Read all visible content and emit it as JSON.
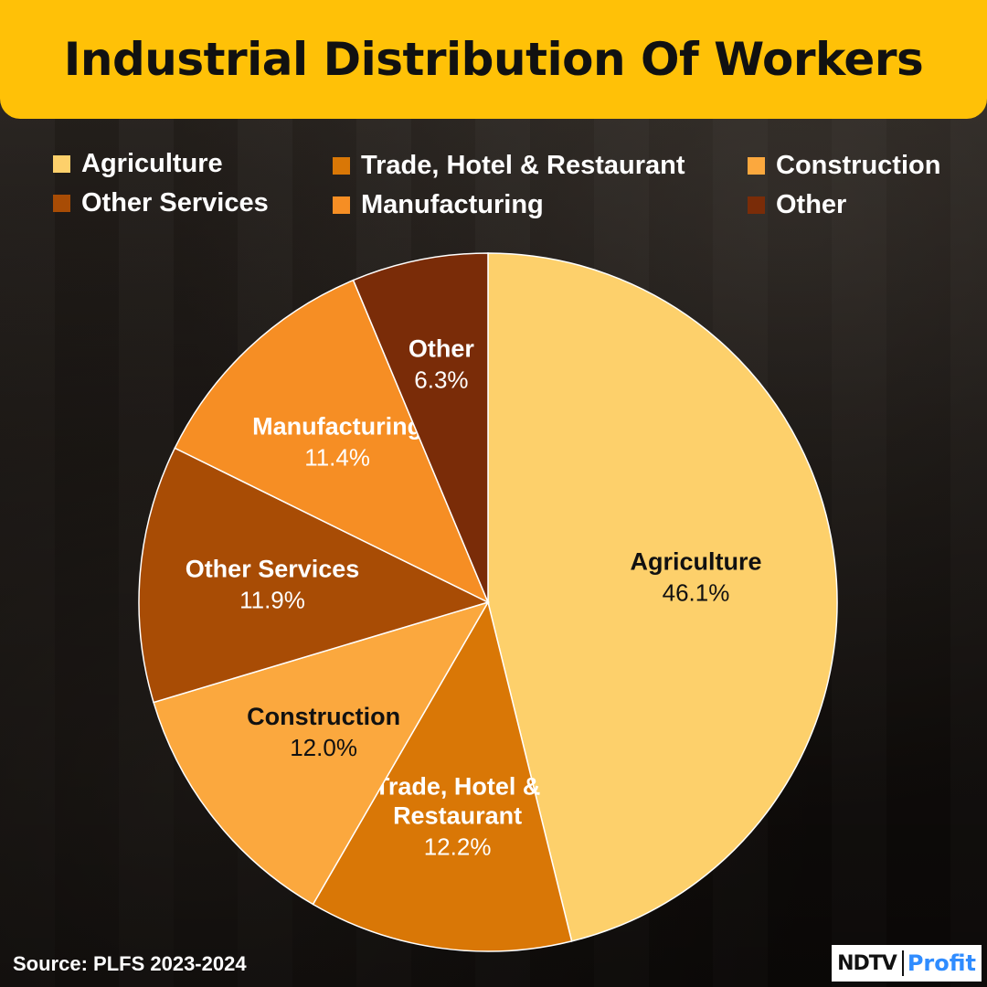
{
  "title": "Industrial Distribution Of Workers",
  "colors": {
    "title_bg": "#FFC107",
    "Agriculture": "#FDD06B",
    "Trade, Hotel & Restaurant": "#D97706",
    "Construction": "#FBA83E",
    "Other Services": "#A84C05",
    "Manufacturing": "#F68E24",
    "Other": "#7A2C08",
    "profit_blue": "#2F8CFF"
  },
  "legend": [
    "Agriculture",
    "Trade, Hotel & Restaurant",
    "Construction",
    "Other Services",
    "Manufacturing",
    "Other"
  ],
  "chart_data": {
    "type": "pie",
    "title": "Industrial Distribution Of Workers",
    "start_angle": "12 o'clock",
    "direction": "clockwise",
    "slices": [
      {
        "label": "Agriculture",
        "value": 46.1,
        "value_label": "46.1%",
        "text_color": "#111111"
      },
      {
        "label": "Trade, Hotel & Restaurant",
        "label_lines": [
          "Trade, Hotel &",
          "Restaurant"
        ],
        "value": 12.2,
        "value_label": "12.2%",
        "text_color": "#FFFFFF"
      },
      {
        "label": "Construction",
        "value": 12.0,
        "value_label": "12.0%",
        "text_color": "#111111"
      },
      {
        "label": "Other Services",
        "value": 11.9,
        "value_label": "11.9%",
        "text_color": "#FFFFFF"
      },
      {
        "label": "Manufacturing",
        "value": 11.4,
        "value_label": "11.4%",
        "text_color": "#FFFFFF"
      },
      {
        "label": "Other",
        "value": 6.3,
        "value_label": "6.3%",
        "text_color": "#FFFFFF"
      }
    ]
  },
  "source": "Source: PLFS 2023-2024",
  "logo": {
    "ndtv": "NDTV",
    "profit": "Profit"
  }
}
